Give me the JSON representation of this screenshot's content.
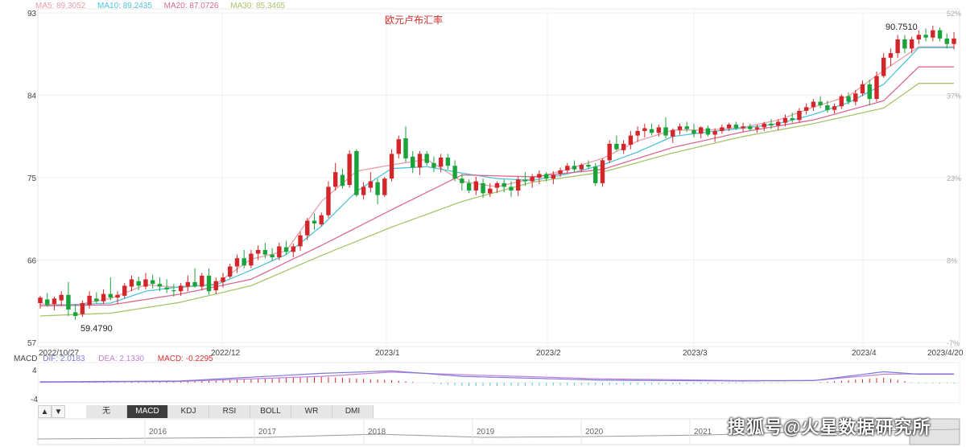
{
  "ma_legend": [
    {
      "label": "MA5: 89.3052",
      "color": "#e8a0a9"
    },
    {
      "label": "MA10: 89.2435",
      "color": "#4fc3d9"
    },
    {
      "label": "MA20: 87.0726",
      "color": "#d96b8f"
    },
    {
      "label": "MA30: 85.3465",
      "color": "#a8c46a"
    }
  ],
  "chart_data": {
    "type": "candlestick",
    "title": "欧元卢布汇率",
    "y_left_ticks": [
      "93",
      "84",
      "75",
      "66",
      "57"
    ],
    "y_left_values": [
      93,
      84,
      75,
      66,
      57
    ],
    "y_right_ticks": [
      "52%",
      "37%",
      "23%",
      "8%",
      "-7%"
    ],
    "x_tick_labels": [
      "2022/10/27",
      "2022/12",
      "2023/1",
      "2023/2",
      "2023/3",
      "2023/4",
      "2023/4/20"
    ],
    "annotations": {
      "high_label": "90.7510",
      "low_label": "59.4790",
      "high_value": 90.751,
      "low_value": 59.479
    },
    "ohlc": [
      [
        61.3,
        62.1,
        60.7,
        61.9
      ],
      [
        61.7,
        62.4,
        60.9,
        61.1
      ],
      [
        61.2,
        62.0,
        60.5,
        61.8
      ],
      [
        61.6,
        62.6,
        61.0,
        62.2
      ],
      [
        62.2,
        63.6,
        59.9,
        60.6
      ],
      [
        60.3,
        61.2,
        59.48,
        59.9
      ],
      [
        60.1,
        61.6,
        59.8,
        61.3
      ],
      [
        61.1,
        62.6,
        60.7,
        62.1
      ],
      [
        61.8,
        62.5,
        61.3,
        61.5
      ],
      [
        61.5,
        62.8,
        61.2,
        62.3
      ],
      [
        62.3,
        64.1,
        61.6,
        61.9
      ],
      [
        61.9,
        62.6,
        61.2,
        62.2
      ],
      [
        62.1,
        63.5,
        61.8,
        63.2
      ],
      [
        63.1,
        64.3,
        62.6,
        63.9
      ],
      [
        63.7,
        64.2,
        62.7,
        63.2
      ],
      [
        63.1,
        64.6,
        62.8,
        63.9
      ],
      [
        63.8,
        64.4,
        62.9,
        63.4
      ],
      [
        63.4,
        64.1,
        62.6,
        63.1
      ],
      [
        63.0,
        63.9,
        62.4,
        62.8
      ],
      [
        62.7,
        63.4,
        62.0,
        62.6
      ],
      [
        62.6,
        63.5,
        62.1,
        63.2
      ],
      [
        63.1,
        64.3,
        62.6,
        63.6
      ],
      [
        63.6,
        65.1,
        63.0,
        63.1
      ],
      [
        63.1,
        64.6,
        62.7,
        64.3
      ],
      [
        64.3,
        65.1,
        62.2,
        62.6
      ],
      [
        62.7,
        64.1,
        62.3,
        63.7
      ],
      [
        63.6,
        64.6,
        63.0,
        64.1
      ],
      [
        64.2,
        65.6,
        64.0,
        65.3
      ],
      [
        65.3,
        66.6,
        64.6,
        66.2
      ],
      [
        66.2,
        67.1,
        65.1,
        65.4
      ],
      [
        65.4,
        67.1,
        65.1,
        66.7
      ],
      [
        66.7,
        67.6,
        66.0,
        67.1
      ],
      [
        67.1,
        67.9,
        66.2,
        66.6
      ],
      [
        66.6,
        67.3,
        65.9,
        66.3
      ],
      [
        66.3,
        67.9,
        66.0,
        67.5
      ],
      [
        67.4,
        68.1,
        66.6,
        66.9
      ],
      [
        66.9,
        67.8,
        66.3,
        67.5
      ],
      [
        67.5,
        69.1,
        67.0,
        68.7
      ],
      [
        68.7,
        70.6,
        68.2,
        70.3
      ],
      [
        70.3,
        71.1,
        69.3,
        70.0
      ],
      [
        69.9,
        71.2,
        69.7,
        70.9
      ],
      [
        70.9,
        74.6,
        70.6,
        74.0
      ],
      [
        74.0,
        76.6,
        73.6,
        75.6
      ],
      [
        75.3,
        76.0,
        73.8,
        74.1
      ],
      [
        74.2,
        78.0,
        73.9,
        77.6
      ],
      [
        77.9,
        78.1,
        72.9,
        73.1
      ],
      [
        73.1,
        74.5,
        72.6,
        74.0
      ],
      [
        73.9,
        75.6,
        73.4,
        74.6
      ],
      [
        74.5,
        74.9,
        72.1,
        73.1
      ],
      [
        73.1,
        75.1,
        72.9,
        74.9
      ],
      [
        74.9,
        78.1,
        74.6,
        77.6
      ],
      [
        77.6,
        79.6,
        77.1,
        79.2
      ],
      [
        79.3,
        80.6,
        76.7,
        77.1
      ],
      [
        77.3,
        77.9,
        75.5,
        76.1
      ],
      [
        76.1,
        77.9,
        75.3,
        77.6
      ],
      [
        77.6,
        77.9,
        76.3,
        76.6
      ],
      [
        76.6,
        77.3,
        75.6,
        76.1
      ],
      [
        76.2,
        77.6,
        75.6,
        77.2
      ],
      [
        77.2,
        77.6,
        75.9,
        76.3
      ],
      [
        76.3,
        76.9,
        74.6,
        74.9
      ],
      [
        74.9,
        75.4,
        73.6,
        74.4
      ],
      [
        74.4,
        74.8,
        73.3,
        73.6
      ],
      [
        73.6,
        75.1,
        73.1,
        74.6
      ],
      [
        74.4,
        74.9,
        72.8,
        73.3
      ],
      [
        73.3,
        74.4,
        72.9,
        73.8
      ],
      [
        73.9,
        74.6,
        73.3,
        74.4
      ],
      [
        74.4,
        74.8,
        73.4,
        74.0
      ],
      [
        74.0,
        74.6,
        72.9,
        73.6
      ],
      [
        73.6,
        75.1,
        73.0,
        74.8
      ],
      [
        74.8,
        75.6,
        74.1,
        74.6
      ],
      [
        74.6,
        75.4,
        73.9,
        75.1
      ],
      [
        75.0,
        75.8,
        74.3,
        75.4
      ],
      [
        75.4,
        75.6,
        74.6,
        74.9
      ],
      [
        74.9,
        75.7,
        74.3,
        75.3
      ],
      [
        75.4,
        76.1,
        75.1,
        75.8
      ],
      [
        75.8,
        76.6,
        75.5,
        76.3
      ],
      [
        76.3,
        76.9,
        75.6,
        75.9
      ],
      [
        75.9,
        76.6,
        75.6,
        76.4
      ],
      [
        76.4,
        76.9,
        75.9,
        76.2
      ],
      [
        76.2,
        76.6,
        74.1,
        74.4
      ],
      [
        74.4,
        77.1,
        74.0,
        76.9
      ],
      [
        76.9,
        79.1,
        76.6,
        78.7
      ],
      [
        78.7,
        79.6,
        77.9,
        78.1
      ],
      [
        78.0,
        79.1,
        77.6,
        78.7
      ],
      [
        78.6,
        80.1,
        78.1,
        79.6
      ],
      [
        79.6,
        80.6,
        78.9,
        80.1
      ],
      [
        80.1,
        80.9,
        79.4,
        80.4
      ],
      [
        80.3,
        80.9,
        79.6,
        79.9
      ],
      [
        79.9,
        80.8,
        79.5,
        80.5
      ],
      [
        80.5,
        81.6,
        79.3,
        79.6
      ],
      [
        79.5,
        80.4,
        78.8,
        80.2
      ],
      [
        80.2,
        80.9,
        79.7,
        80.6
      ],
      [
        80.6,
        81.1,
        80.0,
        80.3
      ],
      [
        80.2,
        80.9,
        79.4,
        79.8
      ],
      [
        79.8,
        80.6,
        79.3,
        80.5
      ],
      [
        80.4,
        80.7,
        79.5,
        79.7
      ],
      [
        79.7,
        80.4,
        78.9,
        80.1
      ],
      [
        80.1,
        80.8,
        79.8,
        80.5
      ],
      [
        80.4,
        81.0,
        80.1,
        80.8
      ],
      [
        80.8,
        81.1,
        80.2,
        80.4
      ],
      [
        80.4,
        81.0,
        80.0,
        80.6
      ],
      [
        80.6,
        80.9,
        80.1,
        80.3
      ],
      [
        80.3,
        80.8,
        79.9,
        80.5
      ],
      [
        80.5,
        81.1,
        80.1,
        80.9
      ],
      [
        80.9,
        81.4,
        80.3,
        80.7
      ],
      [
        80.7,
        81.4,
        80.2,
        81.1
      ],
      [
        81.0,
        81.9,
        80.6,
        81.5
      ],
      [
        81.5,
        82.1,
        81.0,
        81.3
      ],
      [
        81.3,
        82.6,
        81.0,
        82.3
      ],
      [
        82.3,
        83.1,
        81.9,
        82.7
      ],
      [
        82.7,
        83.6,
        82.3,
        83.3
      ],
      [
        83.3,
        83.9,
        82.6,
        82.9
      ],
      [
        82.9,
        83.4,
        82.1,
        82.4
      ],
      [
        82.4,
        83.1,
        82.0,
        82.8
      ],
      [
        82.8,
        84.1,
        82.5,
        83.9
      ],
      [
        83.9,
        84.3,
        83.0,
        83.3
      ],
      [
        83.3,
        84.6,
        82.9,
        84.2
      ],
      [
        84.2,
        85.6,
        83.9,
        85.2
      ],
      [
        85.2,
        85.7,
        82.9,
        83.6
      ],
      [
        83.6,
        86.6,
        83.3,
        86.1
      ],
      [
        86.1,
        88.6,
        85.9,
        88.1
      ],
      [
        88.1,
        89.1,
        87.2,
        88.6
      ],
      [
        88.6,
        90.6,
        88.1,
        90.1
      ],
      [
        90.1,
        90.6,
        88.6,
        89.1
      ],
      [
        89.1,
        90.4,
        88.6,
        90.1
      ],
      [
        90.1,
        91.1,
        89.6,
        90.6
      ],
      [
        90.6,
        91.3,
        89.9,
        90.3
      ],
      [
        90.3,
        91.6,
        89.9,
        91.1
      ],
      [
        91.1,
        91.4,
        89.9,
        90.2
      ],
      [
        90.2,
        90.75,
        89.1,
        89.6
      ],
      [
        89.6,
        90.9,
        89.0,
        90.2
      ]
    ],
    "ma": [
      {
        "name": "MA5",
        "color": "#e8a0a9",
        "x": [
          0,
          5,
          10,
          15,
          20,
          25,
          30,
          35,
          40,
          45,
          50,
          55,
          60,
          65,
          70,
          75,
          80,
          85,
          90,
          95,
          100,
          105,
          110,
          115,
          120,
          125
        ],
        "values": [
          61.2,
          61.1,
          61.8,
          63.3,
          63.0,
          63.4,
          66.1,
          67.0,
          72.4,
          75.7,
          76.4,
          77.0,
          74.6,
          74.0,
          74.9,
          75.9,
          77.1,
          79.0,
          80.2,
          80.2,
          80.5,
          81.3,
          82.7,
          83.9,
          86.7,
          89.3
        ]
      },
      {
        "name": "MA10",
        "color": "#4fc3d9",
        "x": [
          0,
          10,
          15,
          20,
          25,
          30,
          35,
          40,
          45,
          50,
          55,
          60,
          65,
          70,
          75,
          80,
          85,
          90,
          95,
          100,
          105,
          110,
          115,
          120,
          125
        ],
        "values": [
          61.0,
          61.3,
          62.6,
          63.1,
          63.3,
          64.9,
          66.6,
          69.7,
          73.5,
          76.0,
          76.2,
          75.5,
          74.9,
          74.7,
          75.4,
          76.4,
          77.8,
          79.5,
          80.0,
          80.4,
          80.9,
          81.9,
          83.2,
          85.2,
          89.2
        ]
      },
      {
        "name": "MA20",
        "color": "#d96b8f",
        "x": [
          0,
          10,
          20,
          30,
          40,
          50,
          60,
          70,
          80,
          90,
          100,
          110,
          120,
          125
        ],
        "values": [
          61.0,
          61.1,
          62.3,
          63.9,
          67.6,
          71.5,
          75.3,
          75.1,
          75.9,
          78.3,
          80.0,
          81.3,
          83.4,
          87.1
        ]
      },
      {
        "name": "MA30",
        "color": "#a8c46a",
        "x": [
          0,
          10,
          20,
          30,
          40,
          50,
          60,
          70,
          80,
          90,
          100,
          110,
          120,
          125
        ],
        "values": [
          59.9,
          60.2,
          61.4,
          63.2,
          66.5,
          69.6,
          72.4,
          74.5,
          75.6,
          77.7,
          79.5,
          80.9,
          82.6,
          85.3
        ]
      }
    ],
    "macd": {
      "labels": {
        "title": "MACD",
        "dif": "DIF: 2.0183",
        "dea": "DEA: 2.1330",
        "macd": "MACD: -0.2295"
      },
      "y_ticks": [
        "4",
        "-4"
      ],
      "dif_x": [
        0,
        20,
        40,
        50,
        60,
        80,
        100,
        110,
        120,
        125
      ],
      "dif": [
        0.2,
        0.4,
        2.2,
        2.8,
        1.5,
        0.6,
        0.4,
        0.5,
        2.6,
        2.0
      ],
      "dea_x": [
        0,
        20,
        40,
        50,
        60,
        80,
        100,
        110,
        120,
        125
      ],
      "dea": [
        0.1,
        0.3,
        1.5,
        2.5,
        1.9,
        0.9,
        0.5,
        0.5,
        2.0,
        2.1
      ]
    }
  },
  "toolbar": {
    "up": "▲",
    "down": "▼",
    "tabs": [
      "无",
      "MACD",
      "KDJ",
      "RSI",
      "BOLL",
      "WR",
      "DMI"
    ],
    "active": "MACD"
  },
  "nav_years": [
    "2016",
    "2017",
    "2018",
    "2019",
    "2020",
    "2021"
  ],
  "watermark": "搜狐号@火星数据研究所"
}
